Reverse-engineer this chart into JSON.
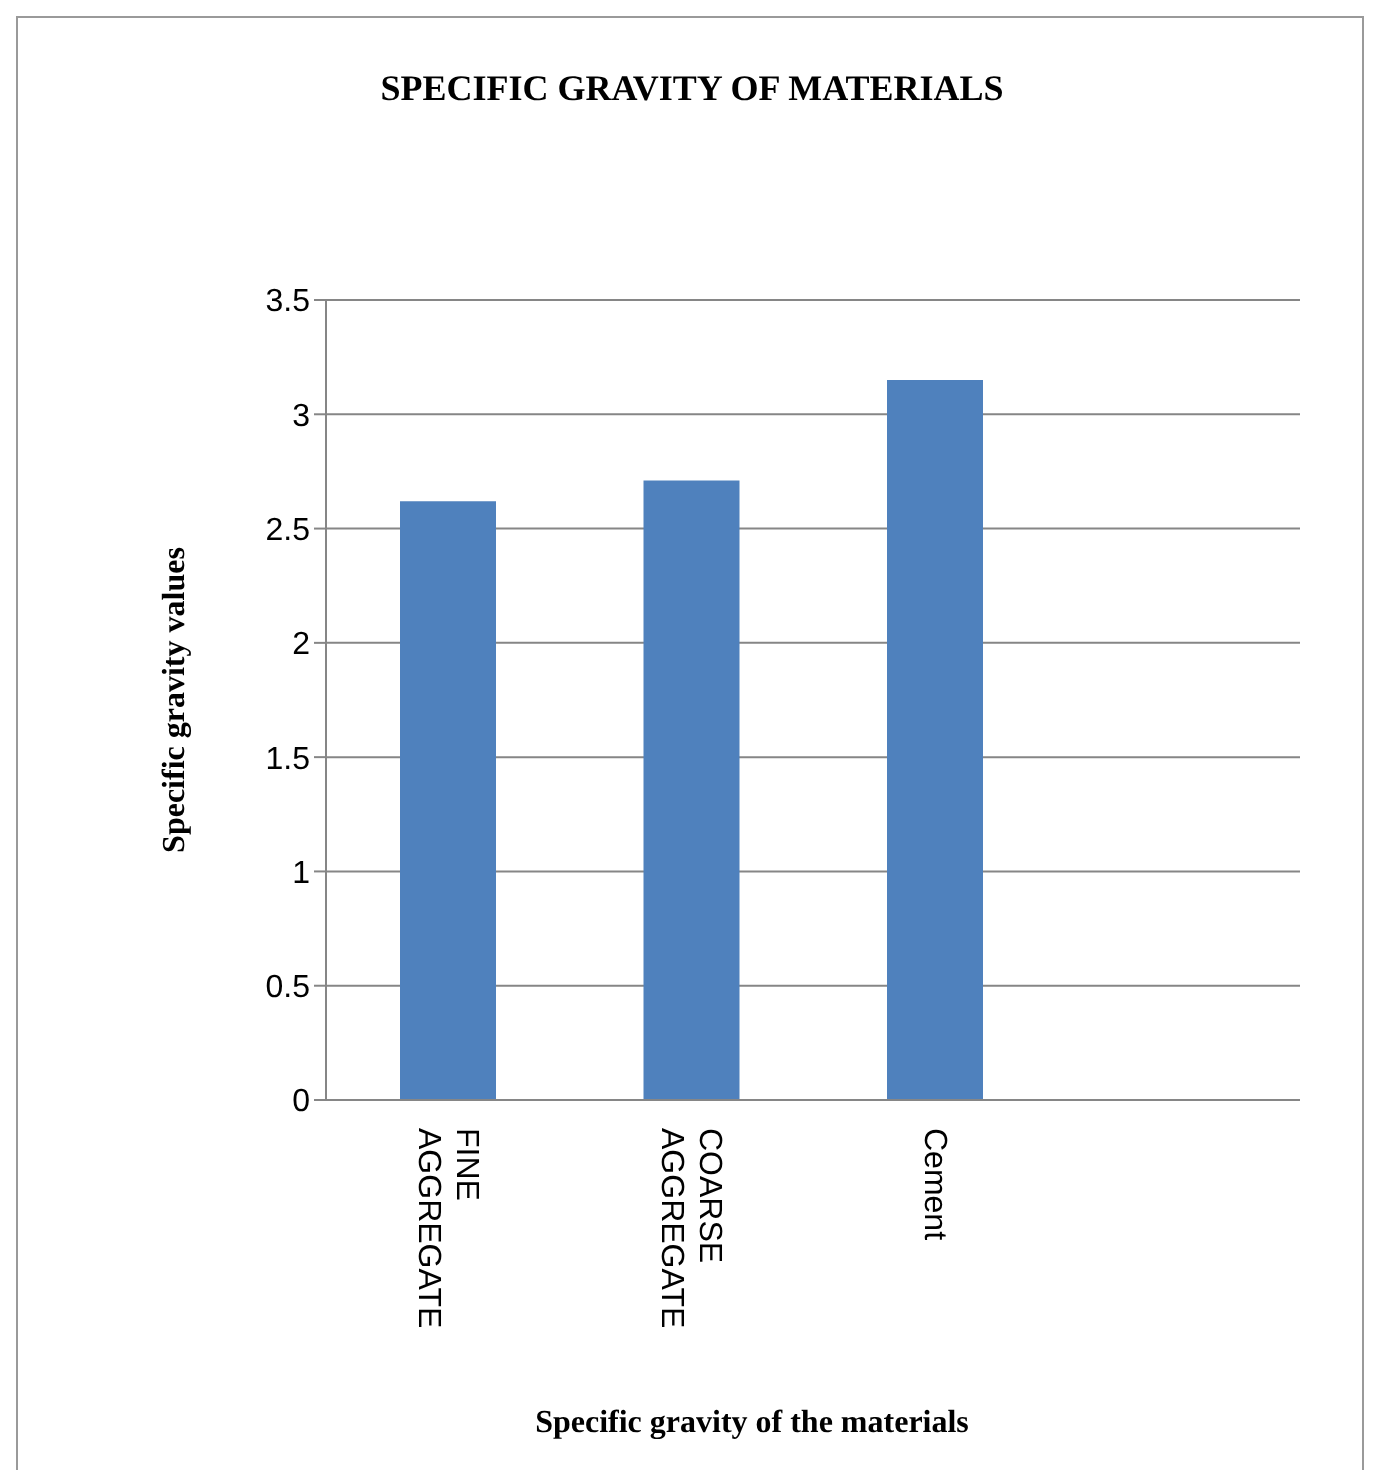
{
  "chart_data": {
    "type": "bar",
    "title": "SPECIFIC GRAVITY OF MATERIALS",
    "xlabel": "Specific gravity of the materials",
    "ylabel": "Specific gravity values",
    "categories": [
      "FINE AGGREGATE",
      "COARSE AGGREGATE",
      "Cement",
      null
    ],
    "values": [
      2.62,
      2.71,
      3.15,
      null
    ],
    "color": "#4f81bd",
    "ylim": [
      0,
      3.5
    ],
    "yticks": [
      0,
      0.5,
      1,
      1.5,
      2,
      2.5,
      3,
      3.5
    ],
    "grid": "y"
  }
}
